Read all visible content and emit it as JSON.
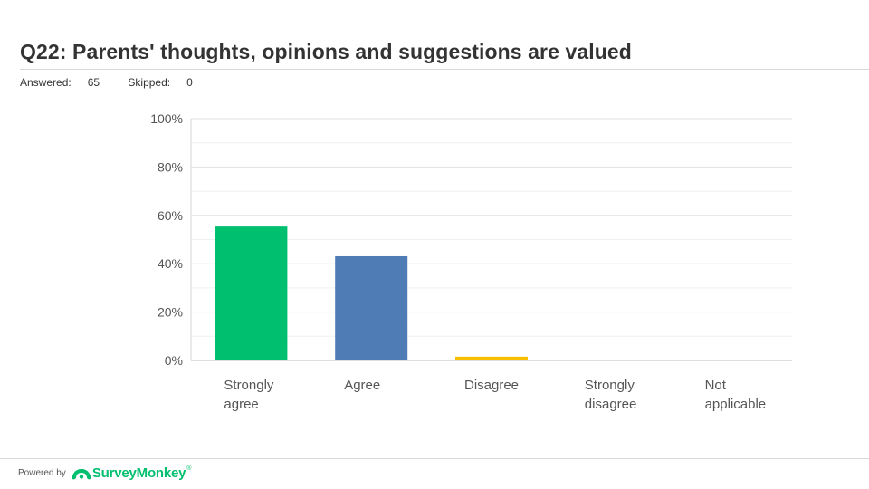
{
  "header": {
    "question_id": "Q22:",
    "question_text": "Parents' thoughts, opinions and suggestions are valued",
    "answered_label": "Answered:",
    "answered_value": "65",
    "skipped_label": "Skipped:",
    "skipped_value": "0"
  },
  "footer": {
    "powered_by": "Powered by",
    "brand": "SurveyMonkey",
    "brand_mark": "®",
    "brand_color": "#00bf6f"
  },
  "chart_data": {
    "type": "bar",
    "title": "Q22: Parents' thoughts, opinions and suggestions are valued",
    "xlabel": "",
    "ylabel": "",
    "ylim": [
      0,
      100
    ],
    "yticks": [
      0,
      20,
      40,
      60,
      80,
      100
    ],
    "ytick_labels": [
      "0%",
      "20%",
      "40%",
      "60%",
      "80%",
      "100%"
    ],
    "grid": true,
    "categories": [
      [
        "Strongly",
        "agree"
      ],
      [
        "Agree"
      ],
      [
        "Disagree"
      ],
      [
        "Strongly",
        "disagree"
      ],
      [
        "Not",
        "applicable"
      ]
    ],
    "values": [
      55.38,
      43.08,
      1.54,
      0,
      0
    ],
    "colors": [
      "#00bf6f",
      "#507cb6",
      "#f9be00",
      "#6bc8cd",
      "#ff8b4f"
    ]
  }
}
